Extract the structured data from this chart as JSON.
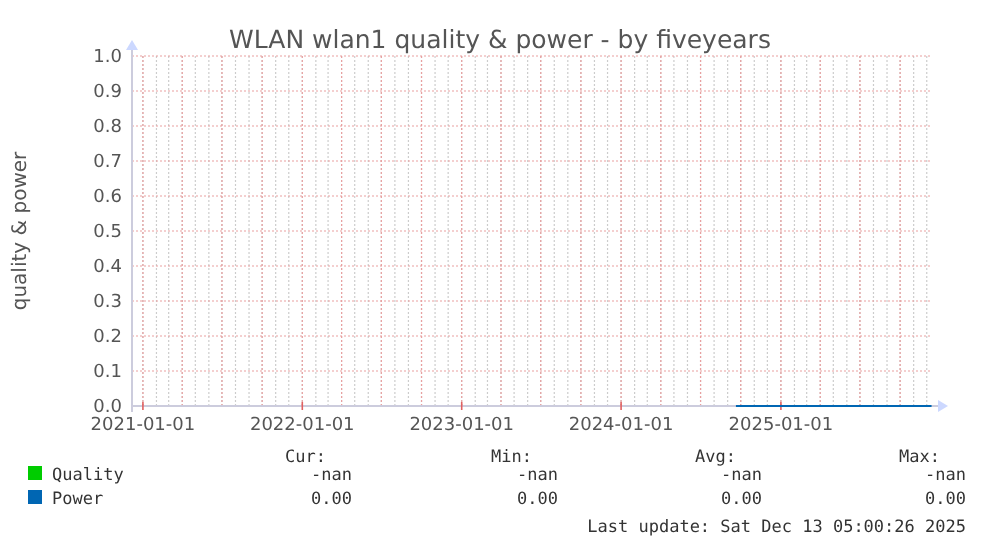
{
  "chart_data": {
    "type": "line",
    "title": "WLAN wlan1 quality & power - by fiveyears",
    "ylabel": "quality & power",
    "xlim": [
      "2020-12-07",
      "2025-12-13"
    ],
    "xticks": [
      {
        "value": "2021-01-01",
        "label": "2021-01-01"
      },
      {
        "value": "2022-01-01",
        "label": "2022-01-01"
      },
      {
        "value": "2023-01-01",
        "label": "2023-01-01"
      },
      {
        "value": "2024-01-01",
        "label": "2024-01-01"
      },
      {
        "value": "2025-01-01",
        "label": "2025-01-01"
      }
    ],
    "ylim": [
      0,
      1
    ],
    "yticks": [
      {
        "value": 0,
        "label": "0.0"
      },
      {
        "value": 0.1,
        "label": "0.1"
      },
      {
        "value": 0.2,
        "label": "0.2"
      },
      {
        "value": 0.3,
        "label": "0.3"
      },
      {
        "value": 0.4,
        "label": "0.4"
      },
      {
        "value": 0.5,
        "label": "0.5"
      },
      {
        "value": 0.6,
        "label": "0.6"
      },
      {
        "value": 0.7,
        "label": "0.7"
      },
      {
        "value": 0.8,
        "label": "0.8"
      },
      {
        "value": 0.9,
        "label": "0.9"
      },
      {
        "value": 1,
        "label": "1.0"
      }
    ],
    "grid": true,
    "legend": "bottom left",
    "series": [
      {
        "name": "Quality",
        "color": "#00cc00"
      },
      {
        "name": "Power",
        "color": "#0066b3",
        "x": [
          "2024-09-20",
          "2025-12-12"
        ],
        "values": [
          0,
          0
        ]
      }
    ],
    "annotations": [
      "Cur:",
      "Min:",
      "Avg:",
      "Max:",
      "-nan",
      "-nan",
      "-nan",
      "-nan",
      "0.00",
      "0.00",
      "0.00",
      "0.00",
      "Last update: Sat Dec 13 05:00:26 2025"
    ]
  }
}
